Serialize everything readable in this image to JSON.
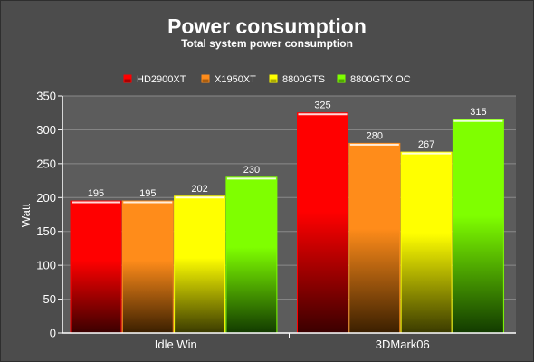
{
  "chart_data": {
    "type": "bar",
    "title": "Power consumption",
    "subtitle": "Total system power consumption",
    "ylabel": "Watt",
    "xlabel": "",
    "ylim": [
      0,
      350
    ],
    "ytick_step": 50,
    "grid": true,
    "legend_position": "top",
    "categories": [
      "Idle Win",
      "3DMark06"
    ],
    "series": [
      {
        "name": "HD2900XT",
        "values": [
          195,
          325
        ],
        "color": "#ff0000",
        "dark": "#3a0000"
      },
      {
        "name": "X1950XT",
        "values": [
          195,
          280
        ],
        "color": "#ff8c1a",
        "dark": "#3a1f00"
      },
      {
        "name": "8800GTS",
        "values": [
          202,
          267
        ],
        "color": "#ffff00",
        "dark": "#3a3a00"
      },
      {
        "name": "8800GTX OC",
        "values": [
          230,
          315
        ],
        "color": "#7fff00",
        "dark": "#123a00"
      }
    ]
  }
}
